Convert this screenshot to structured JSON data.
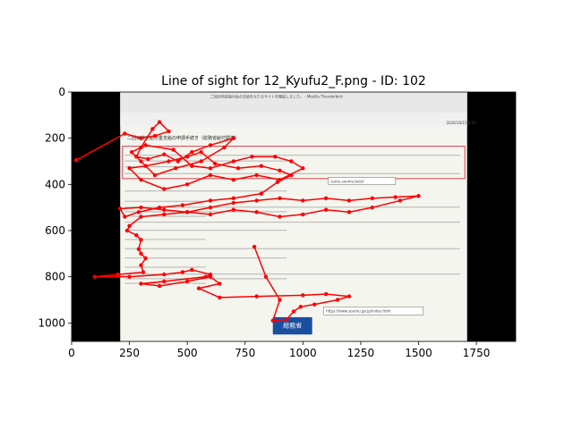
{
  "chart_data": {
    "type": "line",
    "title": "Line of sight for 12_Kyufu2_F.png - ID: 102",
    "xlabel": "",
    "ylabel": "",
    "xlim": [
      0,
      1920
    ],
    "ylim": [
      1080,
      0
    ],
    "x_ticks": [
      0,
      250,
      500,
      750,
      1000,
      1250,
      1500,
      1750
    ],
    "y_ticks": [
      0,
      200,
      400,
      600,
      800,
      1000
    ],
    "line_color": "#ff0000",
    "background_image": {
      "description_colors": {
        "letterbox": "#000000",
        "page": "#f5f5ef",
        "highlight_box": "#d01020"
      },
      "window_title": "二回目特定給付金の支給をかたるサイトを開設しました。 - Mozilla Thunderbird",
      "email_heading": "二回目特定給付金支給の申請手続き（総務省給付関連）",
      "visible_urls": [
        "sumu.soumu.best/",
        "https://www.soumu.go.jp/index.html"
      ],
      "logo_text": "総務省",
      "date_text": "2020/10/15 8:05"
    },
    "series": [
      {
        "points": [
          [
            20,
            295
          ],
          [
            230,
            180
          ],
          [
            300,
            200
          ],
          [
            360,
            190
          ],
          [
            420,
            170
          ],
          [
            380,
            130
          ],
          [
            350,
            160
          ],
          [
            300,
            240
          ],
          [
            280,
            280
          ],
          [
            330,
            290
          ],
          [
            400,
            270
          ],
          [
            460,
            300
          ],
          [
            520,
            260
          ],
          [
            600,
            230
          ],
          [
            700,
            200
          ],
          [
            660,
            240
          ],
          [
            560,
            300
          ],
          [
            450,
            330
          ],
          [
            360,
            360
          ],
          [
            300,
            300
          ],
          [
            260,
            260
          ],
          [
            320,
            230
          ],
          [
            440,
            250
          ],
          [
            520,
            320
          ],
          [
            600,
            330
          ],
          [
            700,
            300
          ],
          [
            780,
            280
          ],
          [
            880,
            280
          ],
          [
            950,
            300
          ],
          [
            1000,
            330
          ],
          [
            900,
            380
          ],
          [
            800,
            360
          ],
          [
            700,
            380
          ],
          [
            600,
            360
          ],
          [
            500,
            400
          ],
          [
            400,
            420
          ],
          [
            300,
            380
          ],
          [
            250,
            330
          ],
          [
            320,
            320
          ],
          [
            420,
            300
          ],
          [
            500,
            280
          ],
          [
            560,
            260
          ],
          [
            620,
            310
          ],
          [
            720,
            330
          ],
          [
            820,
            320
          ],
          [
            900,
            340
          ],
          [
            950,
            360
          ],
          [
            890,
            390
          ],
          [
            820,
            440
          ],
          [
            700,
            460
          ],
          [
            600,
            470
          ],
          [
            480,
            490
          ],
          [
            380,
            500
          ],
          [
            290,
            520
          ],
          [
            230,
            540
          ],
          [
            210,
            505
          ],
          [
            300,
            500
          ],
          [
            400,
            510
          ],
          [
            500,
            520
          ],
          [
            600,
            500
          ],
          [
            700,
            480
          ],
          [
            800,
            470
          ],
          [
            900,
            460
          ],
          [
            1000,
            470
          ],
          [
            1100,
            460
          ],
          [
            1200,
            470
          ],
          [
            1300,
            460
          ],
          [
            1400,
            455
          ],
          [
            1500,
            450
          ],
          [
            1420,
            470
          ],
          [
            1300,
            500
          ],
          [
            1200,
            520
          ],
          [
            1100,
            510
          ],
          [
            1000,
            530
          ],
          [
            900,
            540
          ],
          [
            800,
            520
          ],
          [
            700,
            510
          ],
          [
            600,
            530
          ],
          [
            500,
            520
          ],
          [
            400,
            530
          ],
          [
            300,
            540
          ],
          [
            250,
            580
          ],
          [
            240,
            600
          ],
          [
            280,
            620
          ],
          [
            300,
            640
          ],
          [
            290,
            680
          ],
          [
            300,
            700
          ],
          [
            320,
            720
          ],
          [
            300,
            750
          ],
          [
            310,
            780
          ],
          [
            200,
            790
          ],
          [
            100,
            800
          ],
          [
            250,
            800
          ],
          [
            400,
            790
          ],
          [
            480,
            780
          ],
          [
            520,
            770
          ],
          [
            600,
            790
          ],
          [
            580,
            800
          ],
          [
            400,
            820
          ],
          [
            300,
            830
          ],
          [
            380,
            840
          ],
          [
            500,
            820
          ],
          [
            600,
            800
          ],
          [
            640,
            830
          ],
          [
            550,
            850
          ],
          [
            640,
            890
          ],
          [
            800,
            885
          ],
          [
            1000,
            880
          ],
          [
            1100,
            875
          ],
          [
            1200,
            885
          ],
          [
            1150,
            900
          ],
          [
            1050,
            920
          ],
          [
            990,
            930
          ],
          [
            960,
            950
          ],
          [
            930,
            985
          ],
          [
            870,
            990
          ],
          [
            900,
            900
          ],
          [
            840,
            800
          ],
          [
            790,
            670
          ]
        ]
      }
    ]
  }
}
